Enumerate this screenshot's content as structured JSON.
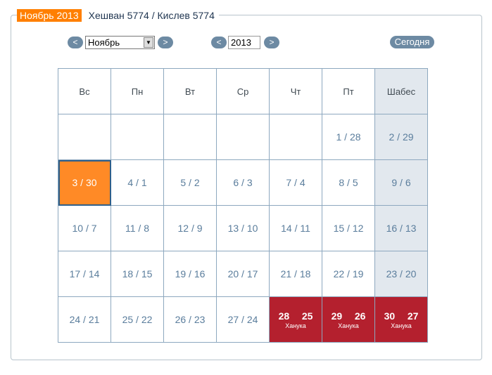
{
  "header": {
    "month_badge": "Ноябрь 2013",
    "jewish_months": "Хешван 5774 / Кислев 5774"
  },
  "controls": {
    "prev": "<",
    "next": ">",
    "month_value": "Ноябрь",
    "year_value": "2013",
    "today_label": "Сегодня"
  },
  "weekdays": [
    "Вс",
    "Пн",
    "Вт",
    "Ср",
    "Чт",
    "Пт",
    "Шабес"
  ],
  "weeks": [
    [
      "",
      "",
      "",
      "",
      "",
      "1 / 28",
      "2 / 29"
    ],
    [
      "3 / 30",
      "4 / 1",
      "5 / 2",
      "6 / 3",
      "7 / 4",
      "8 / 5",
      "9 / 6"
    ],
    [
      "10 / 7",
      "11 / 8",
      "12 / 9",
      "13 / 10",
      "14 / 11",
      "15 / 12",
      "16 / 13"
    ],
    [
      "17 / 14",
      "18 / 15",
      "19 / 16",
      "20 / 17",
      "21 / 18",
      "22 / 19",
      "23 / 20"
    ],
    [
      "24 / 21",
      "25 / 22",
      "26 / 23",
      "27 / 24",
      "28   25",
      "29   26",
      "30   27"
    ]
  ],
  "holiday_name": "Ханука",
  "colors": {
    "accent": "#ff7f00",
    "holiday": "#b4202e",
    "shabbat": "#e2e8ee",
    "button": "#6d8aa3"
  }
}
